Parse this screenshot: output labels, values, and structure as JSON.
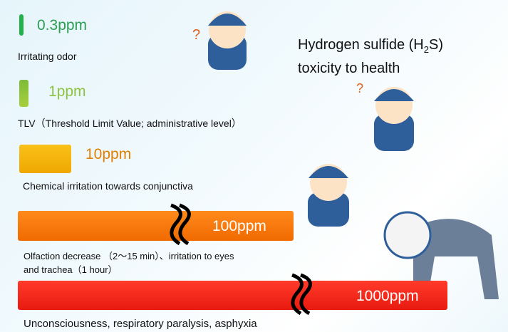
{
  "title": {
    "line1_before": "Hydrogen sulfide (H",
    "subscript": "2",
    "line1_after": "S)",
    "line2": "toxicity to health"
  },
  "levels": [
    {
      "label": "0.3ppm",
      "description_lines": [
        "Irritating odor"
      ]
    },
    {
      "label": "1ppm",
      "description_lines": [
        "TLV（Threshold Limit Value; administrative level）"
      ]
    },
    {
      "label": "10ppm",
      "description_lines": [
        "Chemical irritation towards conjunctiva"
      ]
    },
    {
      "label": "100ppm",
      "description_lines": [
        "Olfaction decrease （2〜15 min）、irritation to eyes",
        "and trachea（1 hour）"
      ]
    },
    {
      "label": "1000ppm",
      "description_lines": [
        "Unconsciousness, respiratory paralysis, asphyxia"
      ]
    }
  ]
}
